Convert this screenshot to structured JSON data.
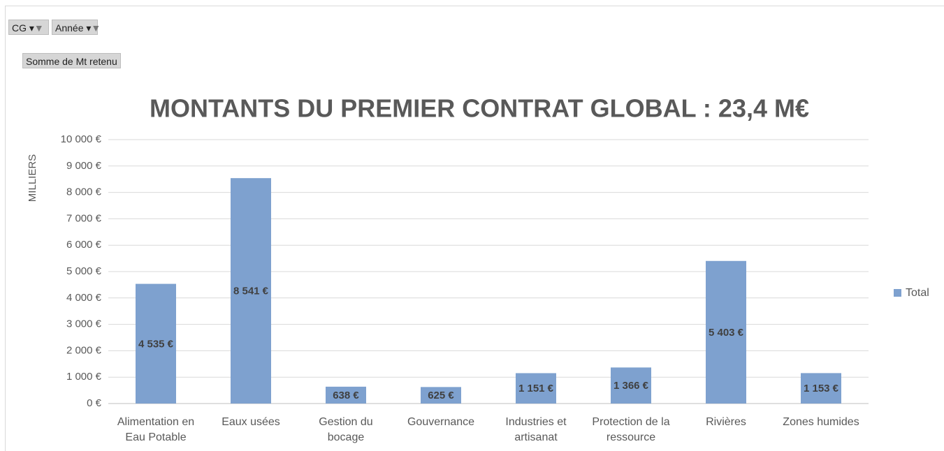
{
  "chart_data": {
    "type": "bar",
    "filters": [
      "CG",
      "Année"
    ],
    "value_field": "Somme de Mt retenu",
    "title": "MONTANTS DU PREMIER CONTRAT GLOBAL :  23,4 M€",
    "y_label": "MILLIERS",
    "categories": [
      "Alimentation en Eau Potable",
      "Eaux usées",
      "Gestion du bocage",
      "Gouvernance",
      "Industries et artisanat",
      "Protection de la ressource",
      "Rivières",
      "Zones humides"
    ],
    "series": [
      {
        "name": "Total",
        "color": "#7ea1cf",
        "values": [
          4535,
          8541,
          638,
          625,
          1151,
          1366,
          5403,
          1153
        ],
        "value_labels": [
          "4 535 €",
          "8 541 €",
          "638 €",
          "625 €",
          "1 151 €",
          "1 366 €",
          "5 403 €",
          "1 153 €"
        ]
      }
    ],
    "ylim": [
      0,
      10000
    ],
    "yticks": [
      {
        "value": 0,
        "label": "0 €"
      },
      {
        "value": 1000,
        "label": "1 000 €"
      },
      {
        "value": 2000,
        "label": "2 000 €"
      },
      {
        "value": 3000,
        "label": "3 000 €"
      },
      {
        "value": 4000,
        "label": "4 000 €"
      },
      {
        "value": 5000,
        "label": "5 000 €"
      },
      {
        "value": 6000,
        "label": "6 000 €"
      },
      {
        "value": 7000,
        "label": "7 000 €"
      },
      {
        "value": 8000,
        "label": "8 000 €"
      },
      {
        "value": 9000,
        "label": "9 000 €"
      },
      {
        "value": 10000,
        "label": "10 000 €"
      }
    ],
    "grid": true,
    "legend": "right"
  }
}
